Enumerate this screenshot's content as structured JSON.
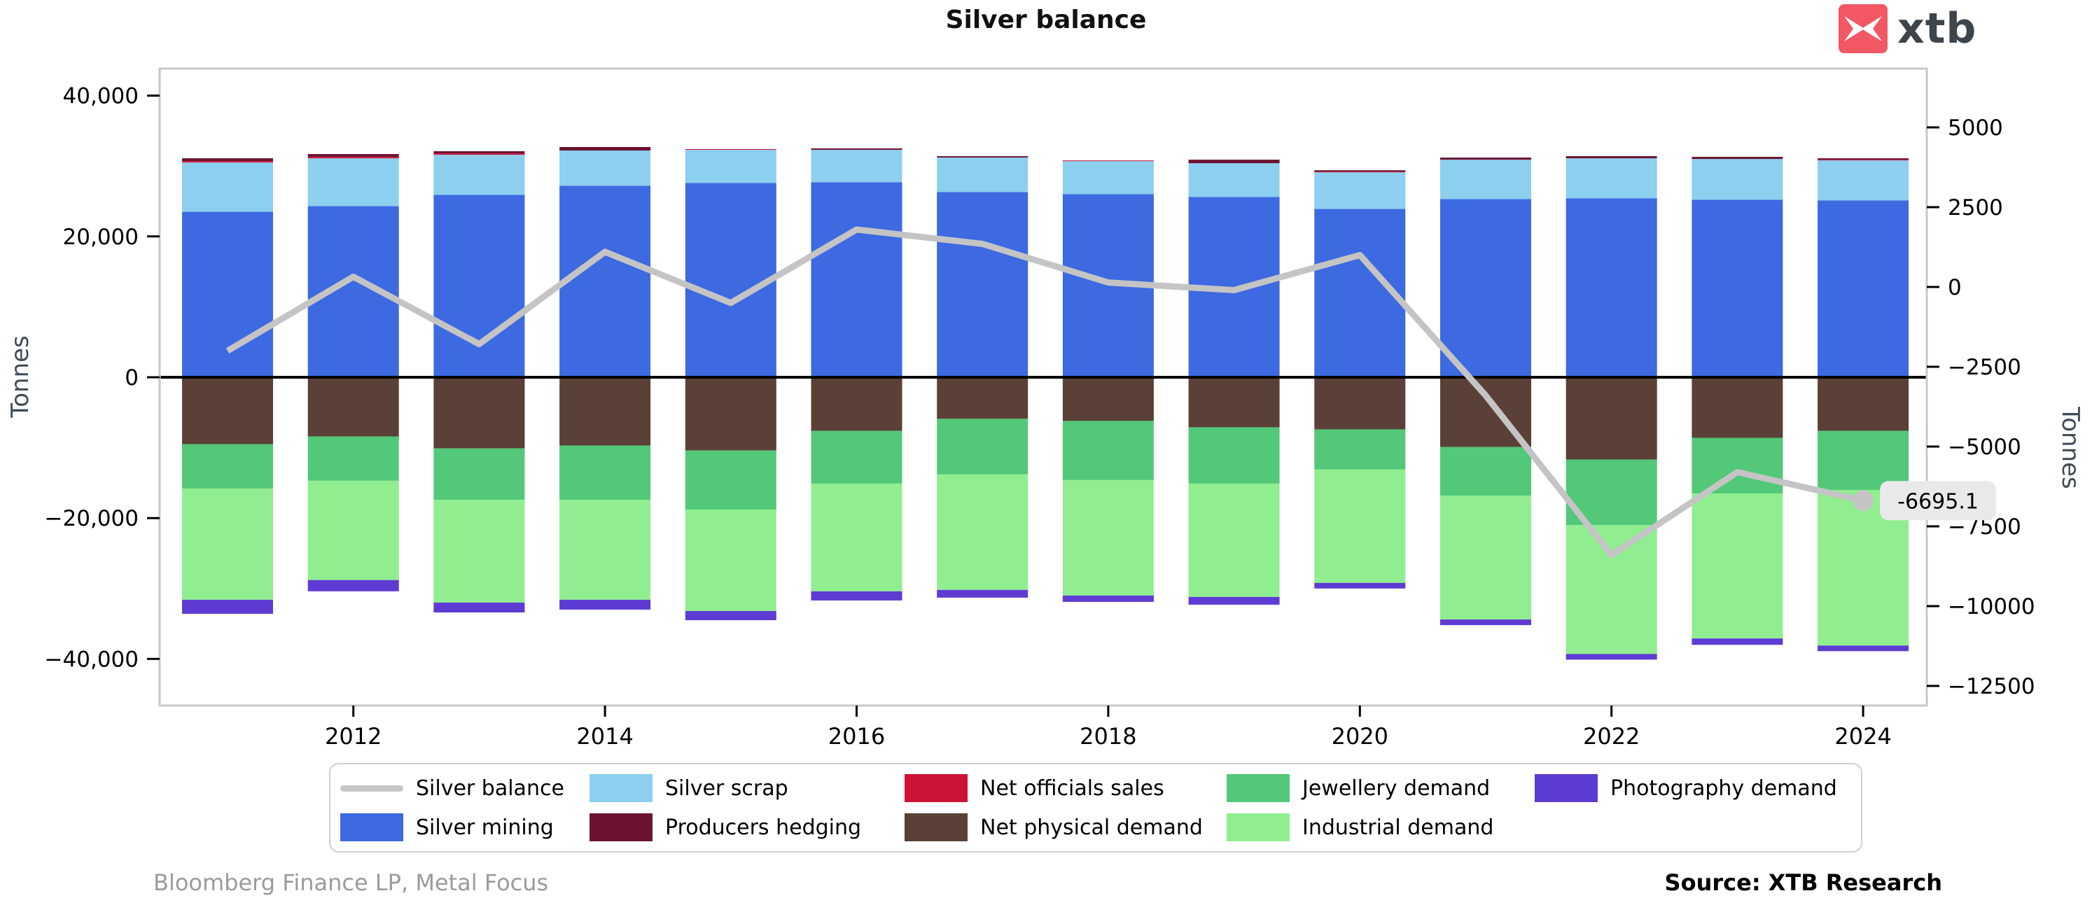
{
  "title": "Silver balance",
  "logo": {
    "brand": "xtb",
    "accent": "#F25864",
    "text_color": "#3E444C"
  },
  "footer": {
    "left": "Bloomberg Finance LP, Metal Focus",
    "right": "Source: XTB Research"
  },
  "chart_data": {
    "type": "bar",
    "subtype": "stacked-bars-with-line",
    "title": "Silver balance",
    "x": [
      2011,
      2012,
      2013,
      2014,
      2015,
      2016,
      2017,
      2018,
      2019,
      2020,
      2021,
      2022,
      2023,
      2024
    ],
    "x_ticks": [
      2012,
      2014,
      2016,
      2018,
      2020,
      2022,
      2024
    ],
    "left_axis": {
      "label": "Tonnes",
      "ticks": [
        40000,
        20000,
        0,
        -20000,
        -40000
      ],
      "range": [
        -44000,
        44000
      ],
      "grid": false
    },
    "right_axis": {
      "label": "Tonnes",
      "ticks": [
        5000,
        2500,
        0,
        -2500,
        -5000,
        -7500,
        -10000,
        -12500
      ],
      "range": [
        -13500,
        6200
      ]
    },
    "colors": {
      "frame": "#c7c7c7",
      "zero_line": "#000000",
      "tick": "#000000",
      "axis_label": "#3E4A57",
      "annotation_bg": "#e9e9e9",
      "annotation_text": "#000000"
    },
    "series": [
      {
        "name": "Silver mining",
        "type": "bar",
        "stack": "supply",
        "axis": "left",
        "color": "#3D69E1",
        "values": [
          23500,
          24300,
          25900,
          27200,
          27600,
          27700,
          26300,
          26000,
          25600,
          23900,
          25300,
          25400,
          25200,
          25100
        ]
      },
      {
        "name": "Silver scrap",
        "type": "bar",
        "stack": "supply",
        "axis": "left",
        "color": "#8CCFEE",
        "values": [
          7000,
          6800,
          5700,
          5000,
          4700,
          4600,
          4900,
          4700,
          4800,
          5200,
          5600,
          5700,
          5800,
          5700
        ]
      },
      {
        "name": "Net officials sales",
        "type": "bar",
        "stack": "supply",
        "axis": "left",
        "color": "#CC1236",
        "values": [
          200,
          200,
          200,
          0,
          100,
          0,
          0,
          100,
          0,
          100,
          0,
          0,
          0,
          100
        ]
      },
      {
        "name": "Producers hedging",
        "type": "bar",
        "stack": "supply",
        "axis": "left",
        "color": "#6B1232",
        "values": [
          400,
          400,
          300,
          500,
          0,
          200,
          200,
          0,
          500,
          200,
          300,
          300,
          300,
          200
        ]
      },
      {
        "name": "Net physical demand",
        "type": "bar",
        "stack": "demand",
        "axis": "left",
        "color": "#5A4036",
        "values": [
          -9500,
          -8400,
          -10100,
          -9700,
          -10400,
          -7600,
          -5900,
          -6200,
          -7100,
          -7400,
          -9900,
          -11700,
          -8600,
          -7600
        ]
      },
      {
        "name": "Jewellery demand",
        "type": "bar",
        "stack": "demand",
        "axis": "left",
        "color": "#52C878",
        "values": [
          -6300,
          -6300,
          -7300,
          -7700,
          -8400,
          -7500,
          -7900,
          -8400,
          -8000,
          -5700,
          -6900,
          -9300,
          -7900,
          -8400
        ]
      },
      {
        "name": "Industrial demand",
        "type": "bar",
        "stack": "demand",
        "axis": "left",
        "color": "#90EE90",
        "values": [
          -15800,
          -14100,
          -14600,
          -14200,
          -14400,
          -15300,
          -16400,
          -16400,
          -16100,
          -16100,
          -17600,
          -18300,
          -20600,
          -22100
        ]
      },
      {
        "name": "Photography demand",
        "type": "bar",
        "stack": "demand",
        "axis": "left",
        "color": "#5E3BD3",
        "values": [
          -2000,
          -1600,
          -1400,
          -1400,
          -1300,
          -1300,
          -1100,
          -900,
          -1100,
          -800,
          -800,
          -800,
          -900,
          -800
        ]
      },
      {
        "name": "Silver balance",
        "type": "line",
        "axis": "right",
        "color": "#C4C4C4",
        "values": [
          -2000,
          320,
          -1790,
          1100,
          -500,
          1800,
          1350,
          140,
          -100,
          1000,
          -3400,
          -8400,
          -5800,
          -6695.1
        ]
      }
    ],
    "annotation": {
      "text": "-6695.1",
      "year": 2024,
      "value": -6695.1
    },
    "legend": [
      {
        "name": "Silver balance",
        "swatch": "line",
        "color": "#C6C6C6"
      },
      {
        "name": "Silver mining",
        "swatch": "patch",
        "color": "#3D69E1"
      },
      {
        "name": "Silver scrap",
        "swatch": "patch",
        "color": "#8CCFEE"
      },
      {
        "name": "Producers hedging",
        "swatch": "patch",
        "color": "#6B1232"
      },
      {
        "name": "Net officials sales",
        "swatch": "patch",
        "color": "#CC1236"
      },
      {
        "name": "Net physical demand",
        "swatch": "patch",
        "color": "#5A4036"
      },
      {
        "name": "Jewellery demand",
        "swatch": "patch",
        "color": "#52C878"
      },
      {
        "name": "Industrial demand",
        "swatch": "patch",
        "color": "#90EE90"
      },
      {
        "name": "Photography demand",
        "swatch": "patch",
        "color": "#5E3BD3"
      }
    ]
  }
}
